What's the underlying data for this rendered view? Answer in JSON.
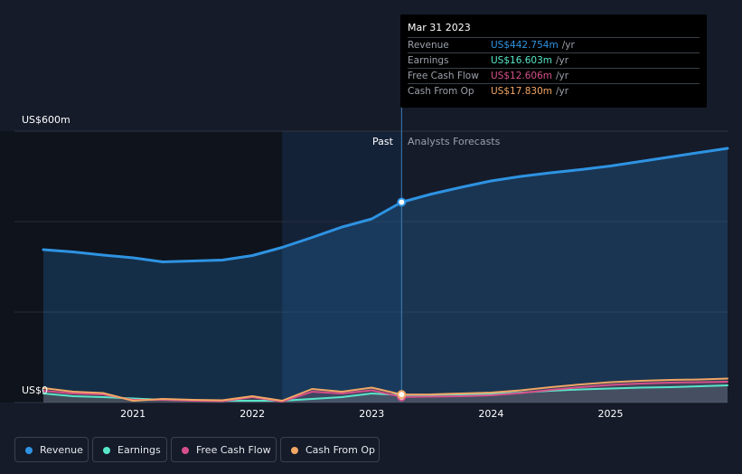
{
  "chart_data": {
    "type": "line",
    "title": "",
    "y_axis_labels": {
      "top": "US$600m",
      "bottom": "US$0"
    },
    "ylim": [
      0,
      600
    ],
    "xlim": [
      2020.25,
      2025.98
    ],
    "x_ticks": [
      2021,
      2022,
      2023,
      2024,
      2025
    ],
    "x_tick_labels": [
      "2021",
      "2022",
      "2023",
      "2024",
      "2025"
    ],
    "past_label": "Past",
    "forecast_label": "Analysts Forecasts",
    "divider_x": 2023.25,
    "highlight_start_x": 2022.25,
    "series": [
      {
        "name": "Revenue",
        "color": "#2e93e2",
        "x": [
          2020.25,
          2020.5,
          2020.75,
          2021,
          2021.25,
          2021.5,
          2021.75,
          2022,
          2022.25,
          2022.5,
          2022.75,
          2023,
          2023.25,
          2023.5,
          2023.75,
          2024,
          2024.25,
          2024.5,
          2024.75,
          2025,
          2025.25,
          2025.5,
          2025.75,
          2025.98
        ],
        "values": [
          338,
          333,
          326,
          320,
          311,
          313,
          315,
          325,
          343,
          365,
          388,
          406,
          443,
          461,
          476,
          490,
          500,
          508,
          515,
          523,
          533,
          543,
          553,
          562
        ]
      },
      {
        "name": "Earnings",
        "color": "#58e6c9",
        "x": [
          2020.25,
          2020.5,
          2020.75,
          2021,
          2021.25,
          2021.5,
          2021.75,
          2022,
          2022.25,
          2022.5,
          2022.75,
          2023,
          2023.25,
          2023.5,
          2023.75,
          2024,
          2024.25,
          2024.5,
          2024.75,
          2025,
          2025.25,
          2025.5,
          2025.75,
          2025.98
        ],
        "values": [
          20,
          14,
          12,
          9,
          6,
          5,
          4,
          4,
          4,
          8,
          12,
          20,
          16.6,
          17,
          18,
          19,
          22,
          26,
          29,
          31,
          33,
          34,
          36,
          38
        ]
      },
      {
        "name": "Free Cash Flow",
        "color": "#d64f8a",
        "x": [
          2020.25,
          2020.5,
          2020.75,
          2021,
          2021.25,
          2021.5,
          2021.75,
          2022,
          2022.25,
          2022.5,
          2022.75,
          2023,
          2023.25,
          2023.5,
          2023.75,
          2024,
          2024.25,
          2024.5,
          2024.75,
          2025,
          2025.25,
          2025.5,
          2025.75,
          2025.98
        ],
        "values": [
          26,
          20,
          18,
          6,
          6,
          4,
          3,
          12,
          2,
          24,
          20,
          27,
          12.6,
          13,
          14,
          16,
          21,
          28,
          34,
          39,
          42,
          44,
          45,
          46
        ]
      },
      {
        "name": "Cash From Op",
        "color": "#f2a765",
        "x": [
          2020.25,
          2020.5,
          2020.75,
          2021,
          2021.25,
          2021.5,
          2021.75,
          2022,
          2022.25,
          2022.5,
          2022.75,
          2023,
          2023.25,
          2023.5,
          2023.75,
          2024,
          2024.25,
          2024.5,
          2024.75,
          2025,
          2025.25,
          2025.5,
          2025.75,
          2025.98
        ],
        "values": [
          32,
          24,
          21,
          4,
          8,
          6,
          5,
          14,
          4,
          30,
          24,
          33,
          17.8,
          18,
          20,
          22,
          27,
          34,
          40,
          45,
          48,
          50,
          51,
          53
        ]
      }
    ]
  },
  "tooltip": {
    "date": "Mar 31 2023",
    "rows": [
      {
        "label": "Revenue",
        "value": "US$442.754m",
        "unit": "/yr",
        "color": "#2e93e2"
      },
      {
        "label": "Earnings",
        "value": "US$16.603m",
        "unit": "/yr",
        "color": "#58e6c9"
      },
      {
        "label": "Free Cash Flow",
        "value": "US$12.606m",
        "unit": "/yr",
        "color": "#d64f8a"
      },
      {
        "label": "Cash From Op",
        "value": "US$17.830m",
        "unit": "/yr",
        "color": "#f2a765"
      }
    ]
  },
  "legend": [
    {
      "label": "Revenue",
      "color": "#2e93e2"
    },
    {
      "label": "Earnings",
      "color": "#58e6c9"
    },
    {
      "label": "Free Cash Flow",
      "color": "#d64f8a"
    },
    {
      "label": "Cash From Op",
      "color": "#f2a765"
    }
  ]
}
